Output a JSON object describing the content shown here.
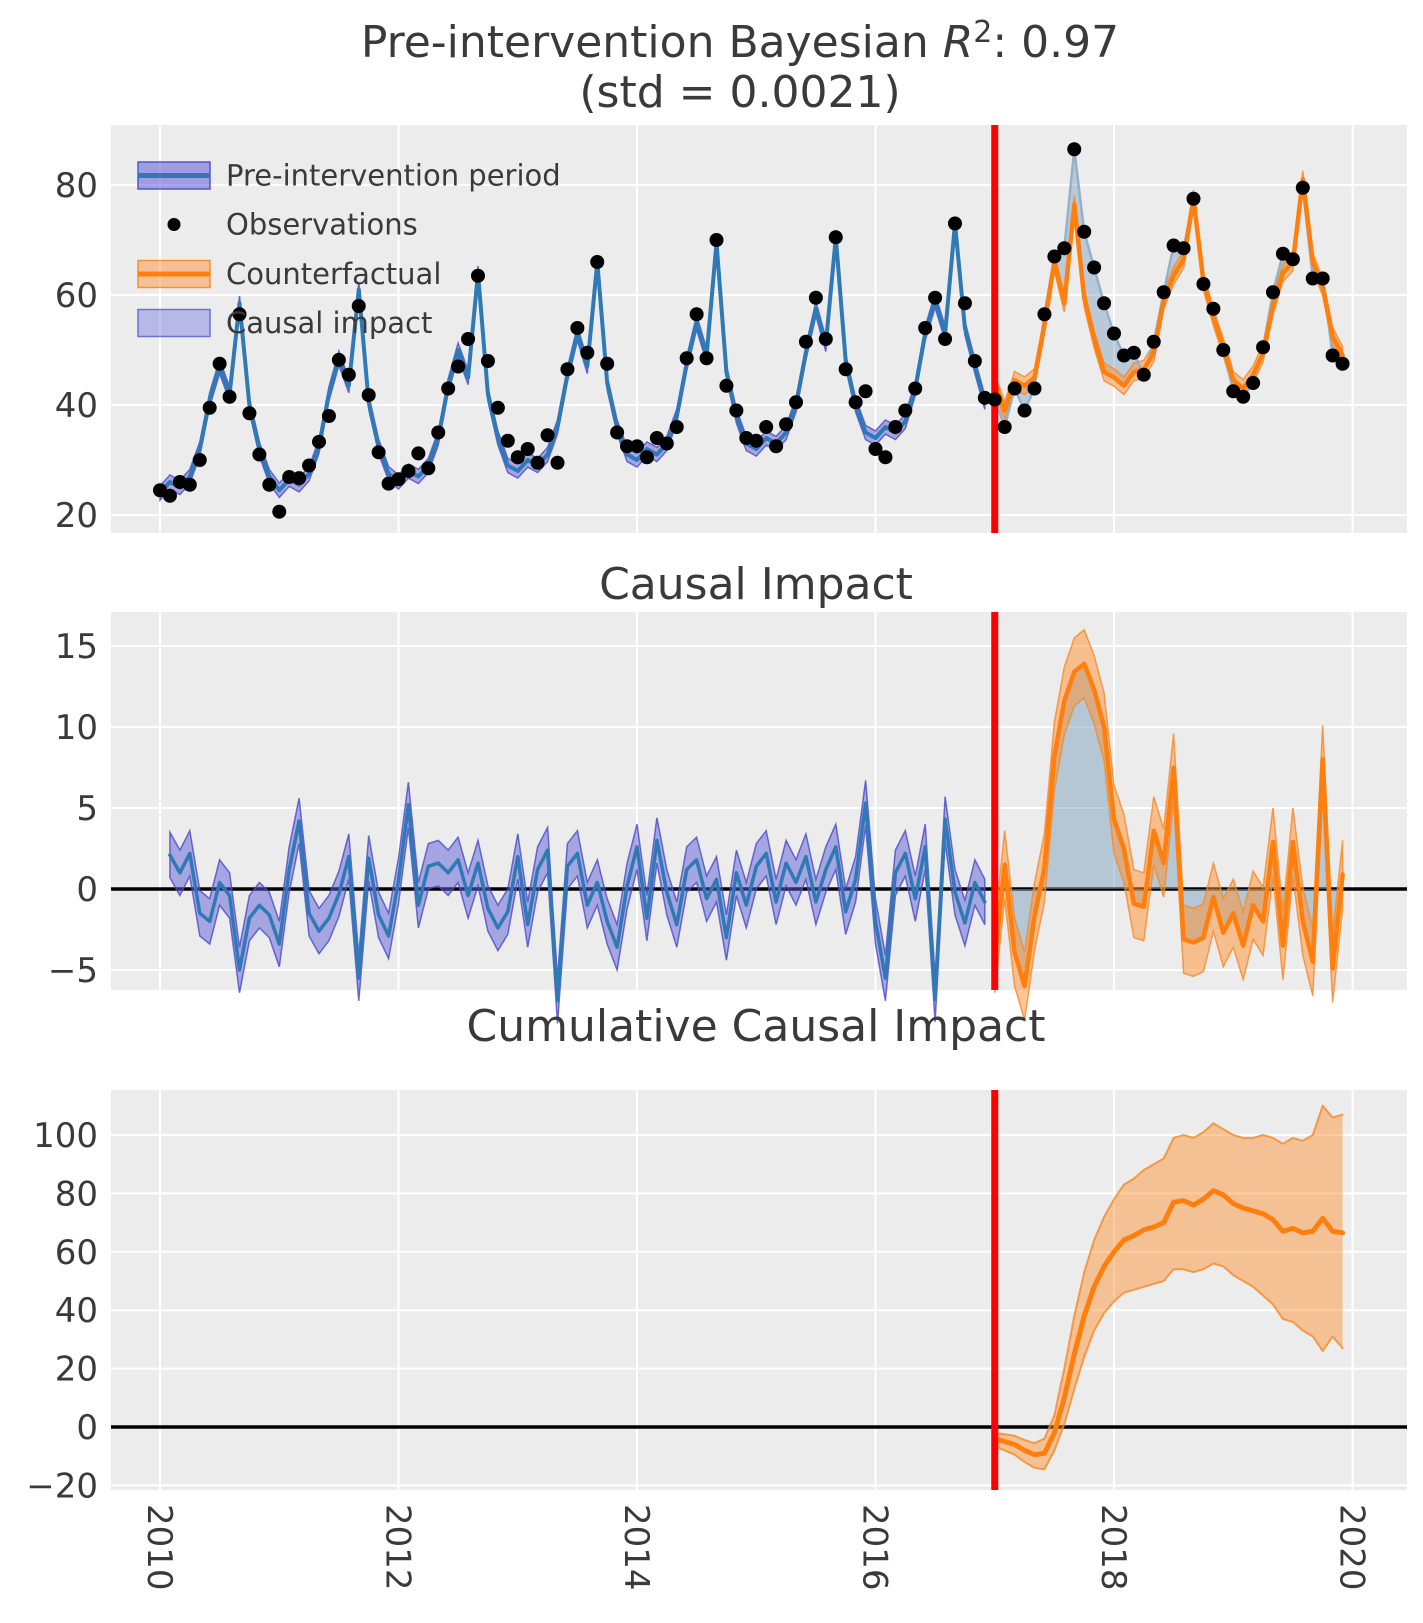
{
  "figure": {
    "title_line1_prefix": "Pre-intervention Bayesian ",
    "title_line1_variable": "R",
    "title_line1_superscript": "2",
    "title_line1_suffix": ": 0.97",
    "title_line2": "(std = 0.0021)"
  },
  "chart_data": {
    "type": "line",
    "x": {
      "start_year": 2010,
      "months": 120,
      "tick_years": [
        2010,
        2012,
        2014,
        2016,
        2018,
        2020
      ],
      "intervention_year": 2017,
      "intervention_index": 84
    },
    "legend": {
      "items": [
        {
          "key": "pre-intervention-period",
          "label": "Pre-intervention period",
          "swatch": "band-line-blue"
        },
        {
          "key": "observations",
          "label": "Observations",
          "swatch": "dot"
        },
        {
          "key": "counterfactual",
          "label": "Counterfactual",
          "swatch": "band-line-orange"
        },
        {
          "key": "causal-impact",
          "label": "Causal impact",
          "swatch": "band-lightpurple"
        }
      ]
    },
    "colors": {
      "background": "#ececec",
      "grid": "#ffffff",
      "blue_line": "#2f79b5",
      "purple_band": "#5d5dd6",
      "purple_band_edge": "#4a4ac8",
      "orange_line": "#ff7f0e",
      "orange_band": "#ff8f2d",
      "orange_band_edge": "#f48a28",
      "lightblue_fill": "#7da0be",
      "observed_line": "#91afc8",
      "dot": "#000000",
      "intervention_red": "#ff0000",
      "zero_line": "#000000",
      "text": "#3a3a3a"
    },
    "panel_fit": {
      "title": "Pre-intervention Bayesian R2: 0.97 (std = 0.0021)",
      "yticks": [
        20,
        40,
        60,
        80
      ],
      "ylim": [
        17,
        92
      ],
      "band_halfwidth_pre": 1.3,
      "band_halfwidth_post": 1.6,
      "model": [
        24,
        26,
        25,
        27,
        32,
        41,
        47,
        42,
        58.5,
        40,
        32,
        27,
        24.5,
        26.5,
        25.5,
        27.5,
        32.5,
        42,
        48.5,
        43.5,
        61,
        40.5,
        32.5,
        27.5,
        26,
        28,
        27,
        29,
        34,
        43.5,
        50,
        45,
        64,
        42,
        34,
        29,
        28,
        30,
        29,
        31,
        36,
        45.5,
        53,
        47,
        66,
        44,
        36,
        31,
        30,
        32,
        31,
        33,
        38,
        47.5,
        55,
        49,
        69.5,
        46,
        38,
        33,
        32,
        34,
        33,
        35,
        40,
        49.5,
        57.5,
        51,
        70.5,
        48,
        40,
        35,
        34,
        36,
        35,
        37,
        43,
        53,
        59,
        53,
        73,
        54,
        47,
        40.5,
        44,
        39,
        44.5,
        43.5,
        45,
        54.5,
        66,
        58.5,
        76.5,
        59.5,
        52,
        46,
        45,
        43.5,
        46,
        46.5,
        49.5,
        59,
        63.5,
        66.5,
        77.5,
        62.5,
        56,
        50.5,
        44.5,
        43,
        45.5,
        49.5,
        58,
        64,
        66,
        81,
        66,
        61.5,
        52.5,
        49
      ],
      "observations": [
        24.5,
        23.5,
        26,
        25.5,
        30,
        39.5,
        47.5,
        41.5,
        56.5,
        38.5,
        31,
        25.5,
        20.6,
        26.9,
        26.7,
        29,
        33.3,
        38,
        48.2,
        45.5,
        58,
        41.8,
        31.4,
        25.7,
        26.5,
        28,
        31.2,
        28.5,
        35,
        43,
        47,
        52,
        63.5,
        48,
        39.5,
        33.5,
        30.5,
        32,
        29.5,
        34.5,
        29.5,
        46.5,
        54,
        49.5,
        66,
        47.5,
        35,
        32.5,
        32.5,
        30.5,
        34,
        33,
        36,
        48.5,
        56.5,
        48.5,
        70,
        43.5,
        39,
        34,
        33.5,
        36,
        32.5,
        36.5,
        40.5,
        51.5,
        59.5,
        52,
        70.5,
        46.5,
        40.5,
        42.5,
        32,
        30.5,
        36,
        39,
        43,
        54,
        59.5,
        52,
        73,
        58.5,
        48,
        41.3,
        41,
        36,
        43,
        39,
        43,
        56.5,
        67,
        68.5,
        86.5,
        71.5,
        65,
        58.5,
        53,
        49,
        49.5,
        45.5,
        51.5,
        60.5,
        69,
        68.5,
        77.5,
        62,
        57.5,
        50,
        42.5,
        41.5,
        44,
        50.5,
        60.5,
        67.5,
        66.5,
        79.5,
        63,
        63,
        49,
        47.5
      ]
    },
    "panel_pointwise": {
      "title": "Causal Impact",
      "yticks": [
        -5,
        0,
        5,
        10,
        15
      ],
      "ylim": [
        -7.5,
        17
      ],
      "band_halfwidth_pre": 1.4,
      "band_halfwidth_post": 2.1,
      "impact_pre": [
        null,
        2.1,
        1.0,
        2.2,
        -1.5,
        -2.0,
        0.4,
        -0.4,
        -5.0,
        -1.8,
        -1.0,
        -1.6,
        -3.4,
        1.2,
        4.2,
        -1.5,
        -2.6,
        -1.8,
        -0.3,
        2.0,
        -5.5,
        1.9,
        -1.6,
        -2.9,
        0.5,
        5.2,
        -1.0,
        1.4,
        1.6,
        1.0,
        1.8,
        -0.4,
        1.6,
        -1.2,
        -2.4,
        -1.4,
        2.0,
        -2.2,
        1.2,
        2.4,
        -6.9,
        1.4,
        2.2,
        -1.0,
        0.4,
        -2.0,
        -3.6,
        0.2,
        2.6,
        -1.8,
        3.0,
        -0.2,
        -2.2,
        1.2,
        1.8,
        -0.6,
        0.6,
        -3.0,
        1.0,
        -1.0,
        1.4,
        2.2,
        -0.8,
        1.6,
        0.4,
        2.0,
        -0.8,
        1.2,
        2.6,
        -1.4,
        0.6,
        5.3,
        -2.0,
        -5.5,
        1.0,
        2.2,
        -0.6,
        2.6,
        -6.8,
        4.3,
        -0.2,
        -2.1,
        0.4,
        -0.8
      ],
      "impact_post": [
        -4.3,
        1.5,
        -3.9,
        -6.0,
        -1.7,
        1.3,
        8.2,
        11.6,
        13.4,
        13.9,
        12.3,
        10.0,
        4.3,
        2.5,
        -0.9,
        -1.1,
        3.6,
        1.6,
        7.5,
        -3.1,
        -3.3,
        -3.0,
        -0.5,
        -2.7,
        -1.5,
        -3.5,
        -1.0,
        -2.0,
        2.9,
        -3.5,
        2.9,
        -2.0,
        -4.5,
        8.0,
        -4.9,
        0.9
      ]
    },
    "panel_cumulative": {
      "title": "Cumulative Causal Impact",
      "yticks": [
        -20,
        0,
        20,
        40,
        60,
        80,
        100
      ],
      "ylim": [
        -23,
        115
      ],
      "cumulative": [
        -4,
        -5,
        -6,
        -8,
        -9.5,
        -9,
        -2,
        10,
        25,
        38,
        48,
        55,
        60,
        64,
        65.5,
        67.5,
        68.5,
        70,
        77,
        77.5,
        76,
        78,
        81,
        79.5,
        76.5,
        75,
        74,
        73,
        71,
        67,
        68,
        66.5,
        67,
        71.5,
        67,
        66.5
      ],
      "upper": [
        -2,
        -2.5,
        -3,
        -4.5,
        -5.5,
        -4,
        4,
        20,
        38,
        53,
        64,
        72,
        78,
        83,
        85,
        88,
        90,
        92,
        99,
        100,
        99,
        101,
        104,
        102,
        100,
        99,
        99,
        100,
        99,
        97,
        99,
        98,
        100,
        110,
        106,
        107
      ],
      "lower": [
        -6.5,
        -8,
        -9.5,
        -12,
        -14,
        -14.5,
        -8,
        1,
        13,
        24,
        33,
        39,
        43,
        46,
        47,
        48,
        49,
        50,
        54,
        54,
        53,
        54,
        56,
        55,
        52,
        50,
        48,
        45,
        42,
        37,
        36,
        33,
        31,
        26,
        31,
        27
      ]
    }
  }
}
